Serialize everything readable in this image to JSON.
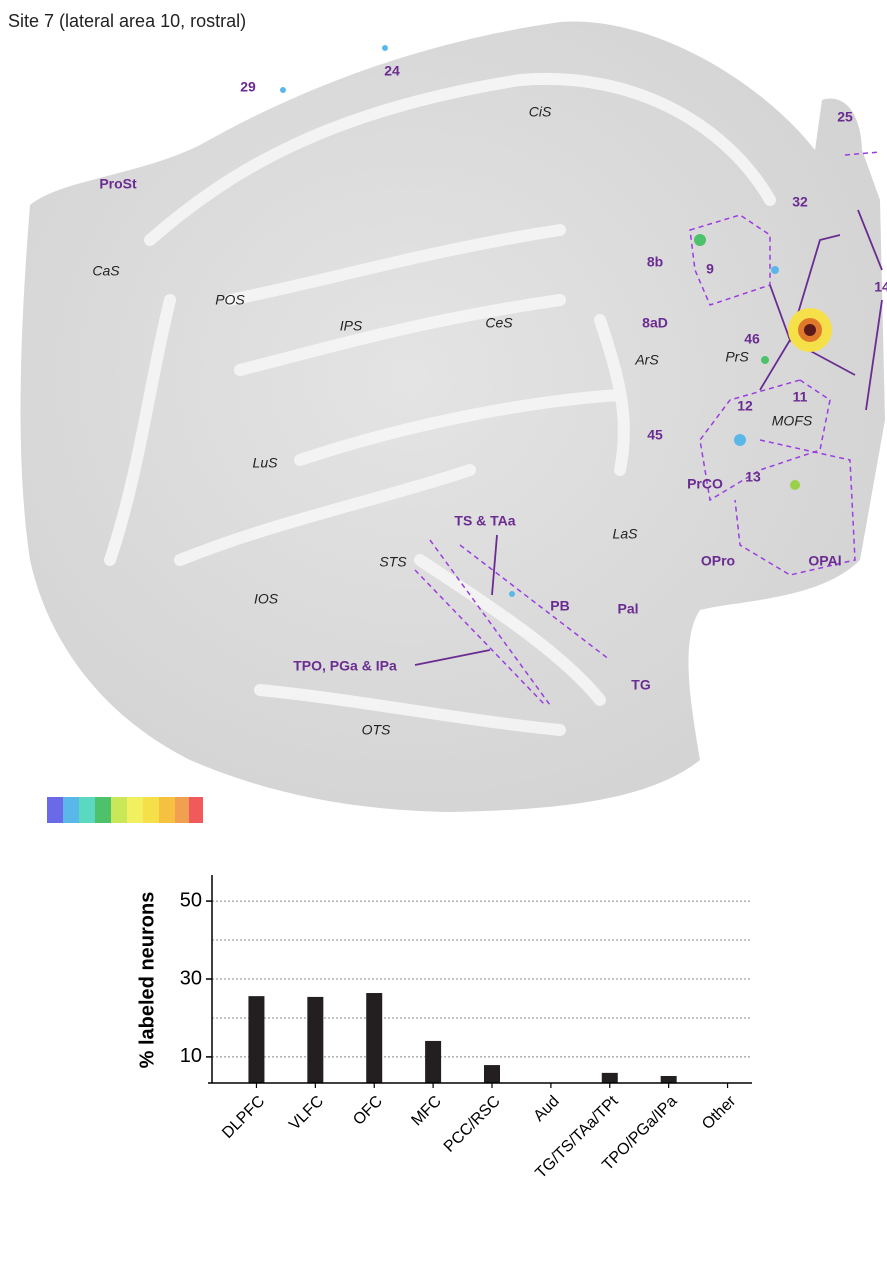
{
  "title": "Site 7 (lateral area 10, rostral)",
  "map": {
    "area_labels": [
      "29",
      "24",
      "25",
      "ProSt",
      "32",
      "8b",
      "9",
      "14",
      "8aD",
      "46",
      "12",
      "11",
      "45",
      "PrCO",
      "13",
      "TS & TAa",
      "OPro",
      "OPAl",
      "PB",
      "Pal",
      "TPO, PGa & IPa",
      "TG"
    ],
    "sulcus_labels": [
      "CiS",
      "CaS",
      "POS",
      "IPS",
      "CeS",
      "ArS",
      "PrS",
      "MOFS",
      "LuS",
      "LaS",
      "STS",
      "IOS",
      "OTS"
    ]
  },
  "chart_data": {
    "type": "bar",
    "ylabel": "% labeled neurons",
    "categories": [
      "DLPFC",
      "VLFC",
      "OFC",
      "MFC",
      "PCC/RSC",
      "Aud",
      "TG/TS/TAa/TPt",
      "TPO/PGa/IPa",
      "Other"
    ],
    "values": [
      25.6,
      25.4,
      26.4,
      14.1,
      7.9,
      0,
      5.9,
      5.1,
      0
    ],
    "color": "#231f20",
    "ylim": [
      3.3,
      56.7
    ],
    "yticks": [
      10,
      30,
      50
    ],
    "grid_lines": [
      10,
      20,
      30,
      40,
      50
    ],
    "grid": true
  }
}
